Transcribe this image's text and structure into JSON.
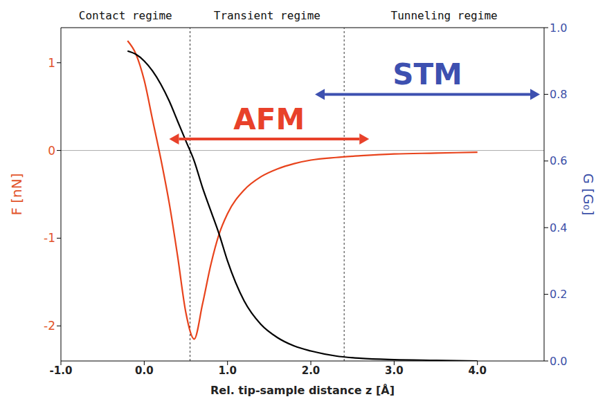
{
  "chart_data": {
    "type": "line",
    "x_label": "Rel. tip-sample distance z [Å]",
    "y_label": "F [nN]",
    "y2_label": "G [G₀]",
    "x": [
      -0.2,
      -0.1,
      0,
      0.1,
      0.2,
      0.3,
      0.4,
      0.5,
      0.6,
      0.7,
      0.8,
      0.9,
      1.0,
      1.2,
      1.4,
      1.6,
      1.8,
      2.0,
      2.3,
      2.6,
      3.0,
      3.5,
      4.0
    ],
    "series": [
      {
        "color": "#e8431c",
        "axis": "y",
        "values": [
          1.25,
          1.1,
          0.8,
          0.35,
          -0.1,
          -0.6,
          -1.2,
          -1.85,
          -2.15,
          -1.75,
          -1.3,
          -0.95,
          -0.72,
          -0.45,
          -0.3,
          -0.21,
          -0.15,
          -0.11,
          -0.08,
          -0.06,
          -0.04,
          -0.03,
          -0.02
        ]
      },
      {
        "color": "#000000",
        "axis": "y2",
        "values": [
          0.93,
          0.92,
          0.9,
          0.87,
          0.83,
          0.78,
          0.72,
          0.66,
          0.6,
          0.52,
          0.45,
          0.38,
          0.3,
          0.18,
          0.11,
          0.07,
          0.045,
          0.03,
          0.015,
          0.008,
          0.004,
          0.002,
          0.0
        ]
      }
    ],
    "xlim": [
      -1.0,
      4.8
    ],
    "xticks": [
      {
        "value": -1,
        "label": "-1.0"
      },
      {
        "value": 0,
        "label": "0.0"
      },
      {
        "value": 1,
        "label": "1.0"
      },
      {
        "value": 2,
        "label": "2.0"
      },
      {
        "value": 3,
        "label": "3.0"
      },
      {
        "value": 4,
        "label": "4.0"
      }
    ],
    "ylim": [
      -2.4,
      1.4
    ],
    "yticks": [
      -2,
      -1,
      0,
      1
    ],
    "y2lim": [
      0,
      1
    ],
    "y2ticks": [
      {
        "value": 0,
        "label": "0.0"
      },
      {
        "value": 0.2,
        "label": "0.2"
      },
      {
        "value": 0.4,
        "label": "0.4"
      },
      {
        "value": 0.6,
        "label": "0.6"
      },
      {
        "value": 0.8,
        "label": "0.8"
      },
      {
        "value": 1,
        "label": "1.0"
      }
    ],
    "hlines": [
      0
    ],
    "regimes": [
      {
        "text": "Contact regime",
        "from": -1.0,
        "to": 0.55
      },
      {
        "text": "Transient regime",
        "from": 0.55,
        "to": 2.4
      },
      {
        "text": "Tunneling regime",
        "from": 2.4,
        "to": 4.8
      }
    ],
    "annotations": [
      {
        "text": "AFM",
        "color": "#e8412a",
        "axis": "y",
        "x": [
          0.3,
          2.7
        ],
        "y": 0.13
      },
      {
        "text": "STM",
        "color": "#3d50b0",
        "axis": "y2",
        "x": [
          2.05,
          4.75
        ],
        "y": 0.8
      }
    ]
  }
}
